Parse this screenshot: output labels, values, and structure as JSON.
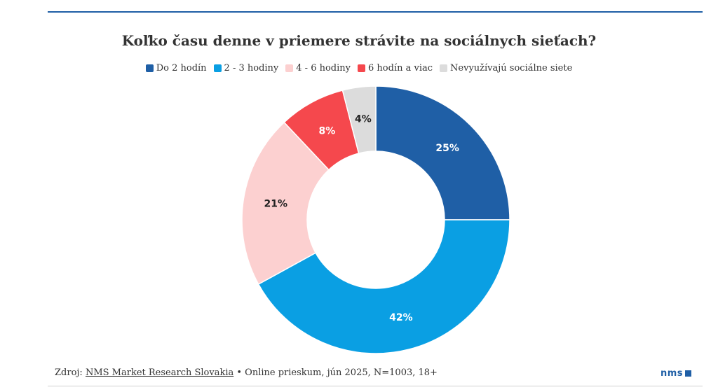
{
  "chart_data": {
    "type": "pie",
    "donut": true,
    "title": "Koľko času denne v priemere strávite na sociálnych sieťach?",
    "legend_position": "top",
    "series": [
      {
        "name": "Do 2 hodín",
        "value": 25,
        "label": "25%",
        "color": "#1f5fa6",
        "label_color": "#ffffff"
      },
      {
        "name": "2 - 3 hodiny",
        "value": 42,
        "label": "42%",
        "color": "#0a9fe3",
        "label_color": "#ffffff"
      },
      {
        "name": "4 - 6 hodiny",
        "value": 21,
        "label": "21%",
        "color": "#fcd0d0",
        "label_color": "#222222"
      },
      {
        "name": "6 hodín a viac",
        "value": 8,
        "label": "8%",
        "color": "#f5484d",
        "label_color": "#ffffff"
      },
      {
        "name": "Nevyužívajú sociálne siete",
        "value": 4,
        "label": "4%",
        "color": "#dcdcdc",
        "label_color": "#222222"
      }
    ]
  },
  "footer": {
    "prefix": "Zdroj: ",
    "source_link": "NMS Market Research Slovakia",
    "suffix": " • Online prieskum, jún 2025, N=1003, 18+"
  },
  "logo": {
    "text": "nms"
  },
  "colors": {
    "brand": "#1f5fa6"
  }
}
